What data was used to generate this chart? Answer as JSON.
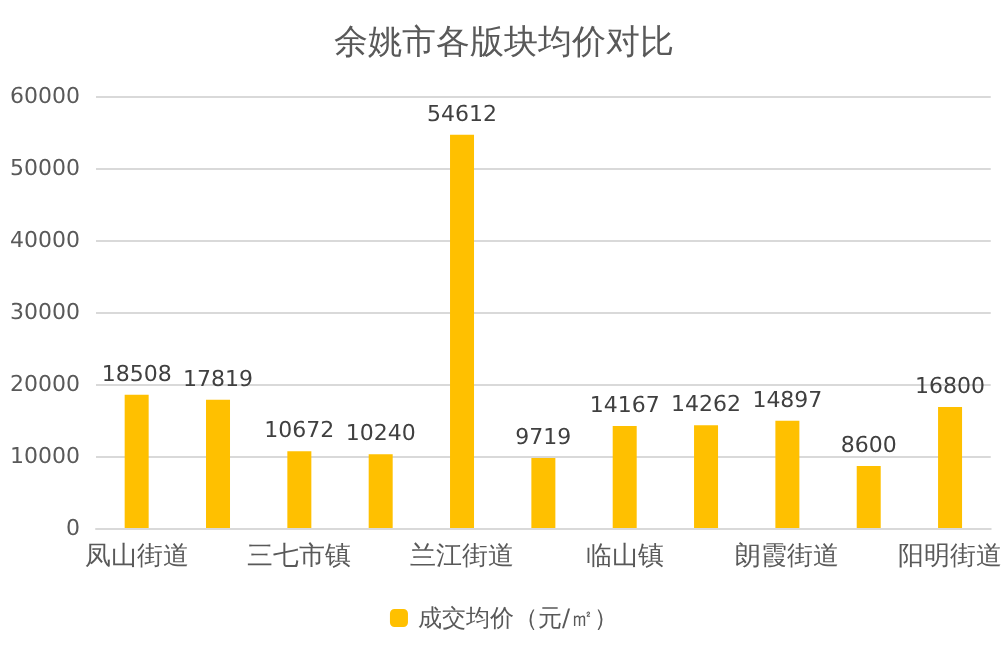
{
  "chart_data": {
    "type": "bar",
    "title": "余姚市各版块均价对比",
    "categories": [
      "凤山街道",
      null,
      "三七市镇",
      null,
      "兰江街道",
      null,
      "临山镇",
      null,
      "朗霞街道",
      null,
      "阳明街道"
    ],
    "series": [
      {
        "name": "成交均价（元/㎡）",
        "color": "#ffc000",
        "values": [
          18508,
          17819,
          10672,
          10240,
          54612,
          9719,
          14167,
          14262,
          14897,
          8600,
          16800
        ]
      }
    ],
    "ylim": [
      0,
      60000
    ],
    "yticks": [
      0,
      10000,
      20000,
      30000,
      40000,
      50000,
      60000
    ],
    "grid": "y",
    "legend": "bottom",
    "data_labels": true
  }
}
